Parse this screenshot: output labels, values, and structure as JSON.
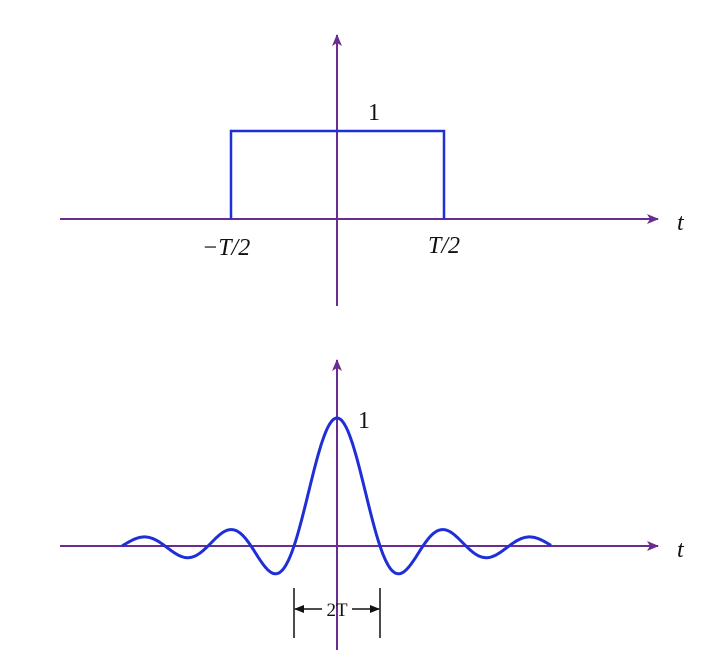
{
  "colors": {
    "axis": "#6a2c91",
    "signal": "#1f2fd6",
    "text": "#111111"
  },
  "top_plot": {
    "signal": "rectangular pulse",
    "height": 1,
    "left_edge": "−T/2",
    "right_edge": "T/2",
    "height_label": "1",
    "left_edge_label": "−T/2",
    "right_edge_label": "T/2",
    "axis_label": "t"
  },
  "bottom_plot": {
    "signal": "sinc pulse",
    "peak_label": "1",
    "width_label": "2T",
    "axis_label": "t"
  }
}
